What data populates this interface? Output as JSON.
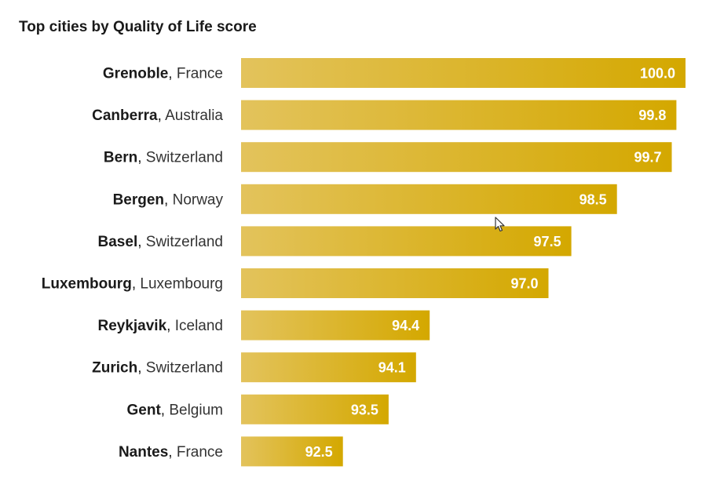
{
  "chart_data": {
    "type": "bar",
    "orientation": "horizontal",
    "title": "Top cities by Quality of Life score",
    "xlabel": "",
    "ylabel": "",
    "categories": [
      {
        "city": "Grenoble",
        "country": "France"
      },
      {
        "city": "Canberra",
        "country": "Australia"
      },
      {
        "city": "Bern",
        "country": "Switzerland"
      },
      {
        "city": "Bergen",
        "country": "Norway"
      },
      {
        "city": "Basel",
        "country": "Switzerland"
      },
      {
        "city": "Luxembourg",
        "country": "Luxembourg"
      },
      {
        "city": "Reykjavik",
        "country": "Iceland"
      },
      {
        "city": "Zurich",
        "country": "Switzerland"
      },
      {
        "city": "Gent",
        "country": "Belgium"
      },
      {
        "city": "Nantes",
        "country": "France"
      }
    ],
    "values": [
      100.0,
      99.8,
      99.7,
      98.5,
      97.5,
      97.0,
      94.4,
      94.1,
      93.5,
      92.5
    ],
    "value_labels": [
      "100.0",
      "99.8",
      "99.7",
      "98.5",
      "97.5",
      "97.0",
      "94.4",
      "94.1",
      "93.5",
      "92.5"
    ],
    "xlim": [
      90.27,
      100
    ],
    "grid": false,
    "legend": "none",
    "colors": {
      "bar_light": "#e3c35c",
      "bar_dark": "#d4a800",
      "value_text": "#ffffff"
    }
  }
}
